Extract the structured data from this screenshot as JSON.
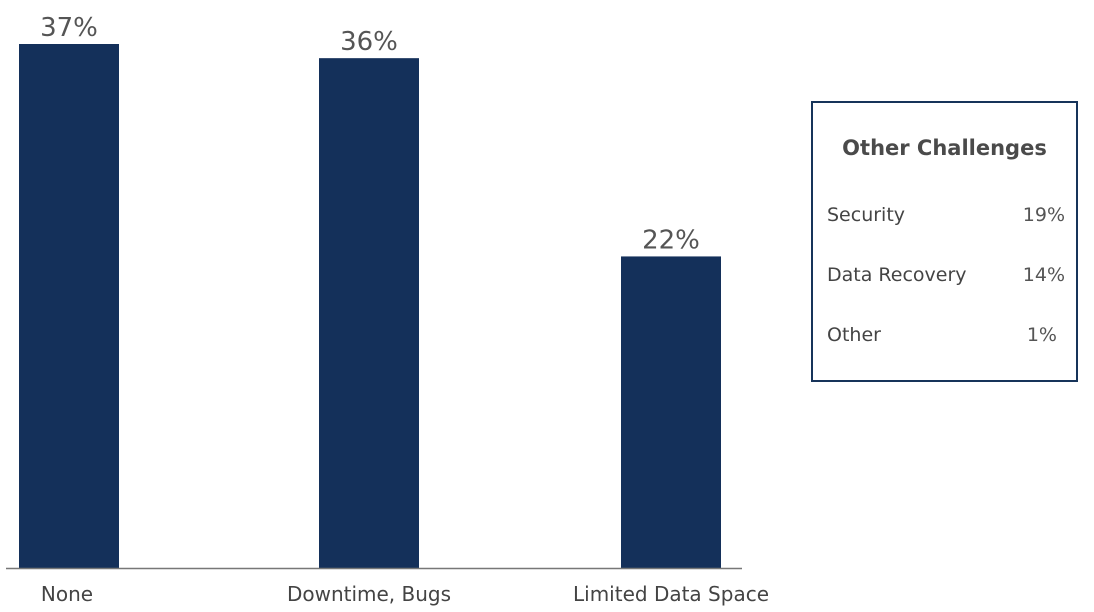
{
  "chart_data": {
    "type": "bar",
    "categories": [
      "None",
      "Downtime, Bugs",
      "Limited Data Space"
    ],
    "values": [
      37,
      36,
      22
    ],
    "value_labels": [
      "37%",
      "36%",
      "22%"
    ],
    "unit": "%",
    "ylim": [
      0,
      40
    ],
    "grid": false,
    "bar_color": "#14305a",
    "axis_color": "#777777"
  },
  "side_table": {
    "title": "Other Challenges",
    "border_color": "#17345a",
    "rows": [
      {
        "label": "Security",
        "value": "19%"
      },
      {
        "label": "Data Recovery",
        "value": "14%"
      },
      {
        "label": "Other",
        "value": "1%"
      }
    ]
  }
}
